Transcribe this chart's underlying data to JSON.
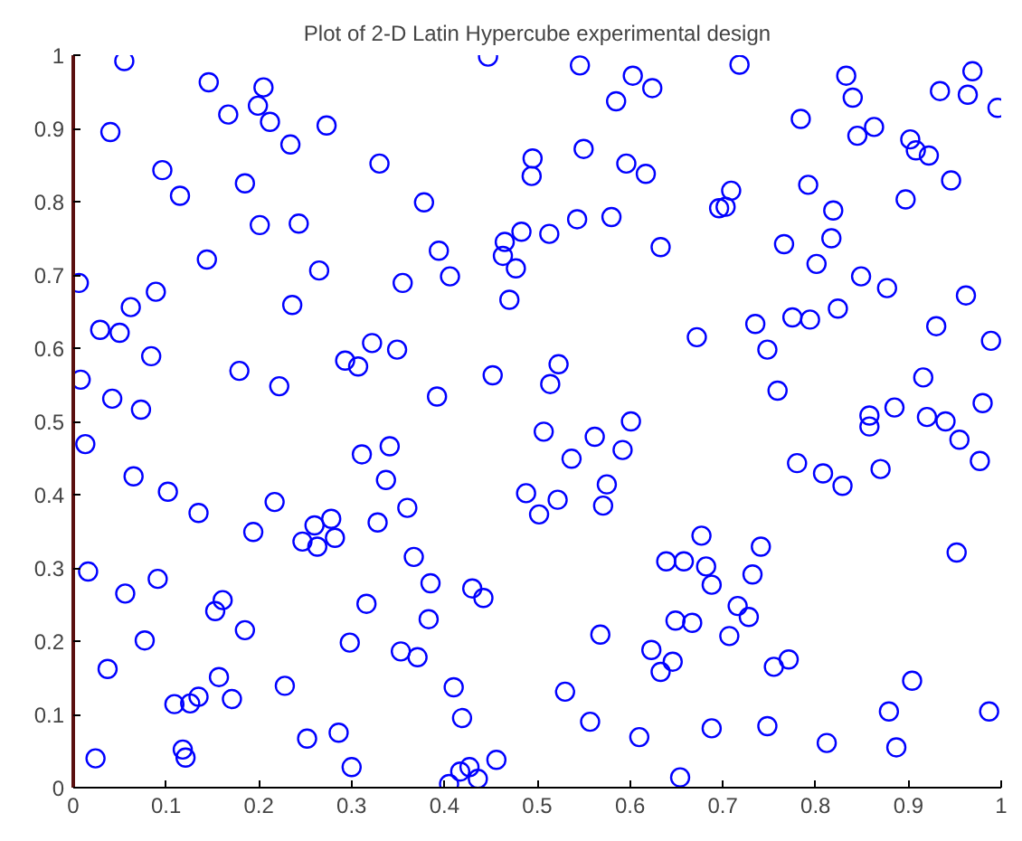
{
  "chart_data": {
    "type": "scatter",
    "title": "Plot of 2-D Latin Hypercube experimental design",
    "marker": "circle",
    "grid": false,
    "xlim": [
      0,
      1
    ],
    "ylim": [
      0,
      1
    ],
    "xticks": [
      0,
      0.1,
      0.2,
      0.3,
      0.4,
      0.5,
      0.6,
      0.7,
      0.8,
      0.9,
      1
    ],
    "yticks": [
      0,
      0.1,
      0.2,
      0.3,
      0.4,
      0.5,
      0.6,
      0.7,
      0.8,
      0.9,
      1
    ],
    "series": [
      {
        "color": "#0000ff",
        "x": [
          0.055,
          0.04,
          0.146,
          0.205,
          0.199,
          0.167,
          0.212,
          0.234,
          0.273,
          0.33,
          0.096,
          0.115,
          0.185,
          0.201,
          0.243,
          0.144,
          0.265,
          0.006,
          0.089,
          0.062,
          0.236,
          0.029,
          0.05,
          0.084,
          0.322,
          0.293,
          0.307,
          0.179,
          0.222,
          0.008,
          0.042,
          0.073,
          0.447,
          0.546,
          0.603,
          0.624,
          0.585,
          0.495,
          0.494,
          0.55,
          0.596,
          0.617,
          0.378,
          0.543,
          0.58,
          0.483,
          0.513,
          0.465,
          0.463,
          0.477,
          0.394,
          0.406,
          0.355,
          0.47,
          0.633,
          0.349,
          0.452,
          0.523,
          0.514,
          0.392,
          0.718,
          0.833,
          0.969,
          0.84,
          0.934,
          0.964,
          0.996,
          0.784,
          0.845,
          0.863,
          0.902,
          0.908,
          0.922,
          0.946,
          0.792,
          0.709,
          0.696,
          0.703,
          0.897,
          0.819,
          0.766,
          0.817,
          0.801,
          0.849,
          0.877,
          0.962,
          0.824,
          0.735,
          0.775,
          0.794,
          0.93,
          0.672,
          0.748,
          0.989,
          0.916,
          0.759,
          0.98,
          0.858,
          0.858,
          0.885,
          0.92,
          0.94,
          0.955,
          0.78,
          0.808,
          0.829,
          0.87,
          0.977,
          0.677,
          0.741,
          0.639,
          0.658,
          0.682,
          0.688,
          0.732,
          0.716,
          0.728,
          0.952,
          0.649,
          0.667,
          0.707,
          0.646,
          0.755,
          0.771,
          0.904,
          0.879,
          0.987,
          0.688,
          0.748,
          0.812,
          0.887,
          0.654,
          0.507,
          0.562,
          0.601,
          0.592,
          0.537,
          0.341,
          0.311,
          0.337,
          0.36,
          0.328,
          0.488,
          0.502,
          0.522,
          0.575,
          0.571,
          0.367,
          0.385,
          0.43,
          0.442,
          0.316,
          0.383,
          0.568,
          0.353,
          0.371,
          0.623,
          0.633,
          0.41,
          0.53,
          0.419,
          0.557,
          0.61,
          0.456,
          0.427,
          0.417,
          0.436,
          0.405,
          0.013,
          0.065,
          0.102,
          0.135,
          0.217,
          0.194,
          0.26,
          0.278,
          0.247,
          0.263,
          0.282,
          0.016,
          0.056,
          0.091,
          0.161,
          0.153,
          0.185,
          0.077,
          0.298,
          0.037,
          0.157,
          0.228,
          0.109,
          0.126,
          0.135,
          0.171,
          0.252,
          0.286,
          0.118,
          0.121,
          0.024,
          0.3
        ],
        "values": [
          0.992,
          0.895,
          0.963,
          0.956,
          0.931,
          0.919,
          0.909,
          0.878,
          0.904,
          0.852,
          0.843,
          0.808,
          0.825,
          0.768,
          0.77,
          0.721,
          0.706,
          0.689,
          0.677,
          0.656,
          0.659,
          0.625,
          0.621,
          0.589,
          0.607,
          0.583,
          0.575,
          0.569,
          0.548,
          0.557,
          0.531,
          0.516,
          0.998,
          0.986,
          0.972,
          0.955,
          0.937,
          0.859,
          0.835,
          0.872,
          0.852,
          0.838,
          0.799,
          0.776,
          0.779,
          0.759,
          0.756,
          0.745,
          0.726,
          0.709,
          0.733,
          0.698,
          0.689,
          0.666,
          0.738,
          0.598,
          0.563,
          0.578,
          0.551,
          0.534,
          0.987,
          0.972,
          0.978,
          0.942,
          0.951,
          0.946,
          0.928,
          0.913,
          0.89,
          0.902,
          0.885,
          0.87,
          0.863,
          0.829,
          0.823,
          0.815,
          0.791,
          0.793,
          0.803,
          0.788,
          0.742,
          0.75,
          0.715,
          0.698,
          0.682,
          0.672,
          0.654,
          0.633,
          0.642,
          0.639,
          0.63,
          0.615,
          0.598,
          0.61,
          0.56,
          0.542,
          0.525,
          0.508,
          0.493,
          0.519,
          0.506,
          0.5,
          0.475,
          0.443,
          0.429,
          0.412,
          0.435,
          0.446,
          0.344,
          0.329,
          0.309,
          0.309,
          0.302,
          0.277,
          0.291,
          0.248,
          0.233,
          0.321,
          0.228,
          0.225,
          0.207,
          0.172,
          0.165,
          0.175,
          0.146,
          0.104,
          0.104,
          0.081,
          0.084,
          0.061,
          0.055,
          0.014,
          0.486,
          0.479,
          0.5,
          0.461,
          0.449,
          0.466,
          0.455,
          0.42,
          0.382,
          0.362,
          0.402,
          0.373,
          0.393,
          0.414,
          0.385,
          0.315,
          0.279,
          0.272,
          0.259,
          0.251,
          0.23,
          0.209,
          0.186,
          0.178,
          0.188,
          0.158,
          0.137,
          0.131,
          0.095,
          0.09,
          0.069,
          0.038,
          0.028,
          0.022,
          0.012,
          0.005,
          0.469,
          0.425,
          0.404,
          0.375,
          0.39,
          0.349,
          0.358,
          0.367,
          0.336,
          0.329,
          0.341,
          0.295,
          0.265,
          0.285,
          0.256,
          0.241,
          0.215,
          0.201,
          0.198,
          0.162,
          0.151,
          0.139,
          0.114,
          0.115,
          0.124,
          0.121,
          0.067,
          0.075,
          0.052,
          0.041,
          0.04,
          0.028
        ]
      }
    ]
  }
}
